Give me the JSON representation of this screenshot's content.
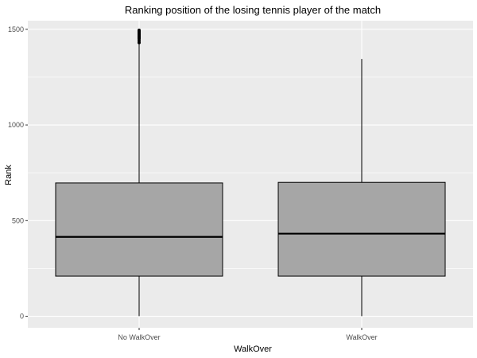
{
  "chart_data": {
    "type": "boxplot",
    "title": "Ranking position of the losing tennis player of the match",
    "xlabel": "WalkOver",
    "ylabel": "Rank",
    "categories": [
      "No WalkOver",
      "WalkOver"
    ],
    "boxes": [
      {
        "category": "No WalkOver",
        "min": 1,
        "q1": 210,
        "median": 415,
        "q3": 697,
        "max": 1425,
        "outliers": [
          1430,
          1440,
          1450,
          1455,
          1460,
          1465,
          1470,
          1475,
          1480,
          1485,
          1490,
          1495
        ]
      },
      {
        "category": "WalkOver",
        "min": 1,
        "q1": 210,
        "median": 432,
        "q3": 700,
        "max": 1345,
        "outliers": []
      }
    ],
    "ylim": [
      -60,
      1545
    ],
    "yticks": [
      0,
      500,
      1000,
      1500
    ],
    "ytick_labels": [
      "0",
      "500",
      "1000",
      "1500"
    ],
    "grid": true,
    "colors": {
      "panel": "#EBEBEB",
      "grid": "#FFFFFF",
      "box_fill": "#A6A6A6",
      "box_line": "#000000"
    }
  }
}
